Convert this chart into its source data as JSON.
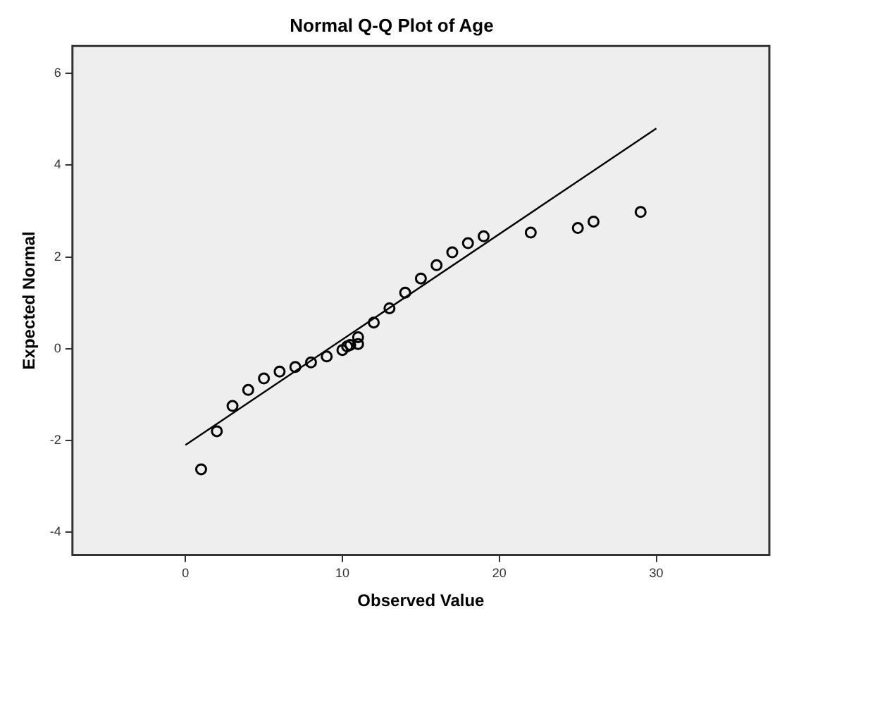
{
  "chart_data": {
    "type": "scatter",
    "title": "Normal Q-Q Plot of Age",
    "xlabel": "Observed Value",
    "ylabel": "Expected Normal",
    "xlim": [
      -7.2,
      37.2
    ],
    "ylim": [
      -4.5,
      6.6
    ],
    "xticks": [
      0,
      10,
      20,
      30
    ],
    "yticks": [
      -4,
      -2,
      0,
      2,
      4,
      6
    ],
    "grid": false,
    "legend": false,
    "marker": "circle",
    "series": [
      {
        "color": "#000000",
        "x": [
          1,
          2,
          3,
          4,
          5,
          6,
          7,
          8,
          9,
          10,
          10.3,
          10.5,
          11,
          11,
          12,
          13,
          14,
          15,
          16,
          17,
          18,
          19,
          22,
          25,
          26,
          29
        ],
        "values": [
          -2.63,
          -1.8,
          -1.25,
          -0.9,
          -0.65,
          -0.5,
          -0.4,
          -0.3,
          -0.17,
          -0.03,
          0.05,
          0.08,
          0.1,
          0.25,
          0.57,
          0.88,
          1.22,
          1.53,
          1.82,
          2.1,
          2.3,
          2.45,
          2.53,
          2.63,
          2.77,
          2.98
        ]
      },
      {
        "type": "line",
        "marker": "none",
        "color": "#000000",
        "x": [
          0,
          30
        ],
        "values": [
          -2.1,
          4.8
        ]
      }
    ]
  }
}
